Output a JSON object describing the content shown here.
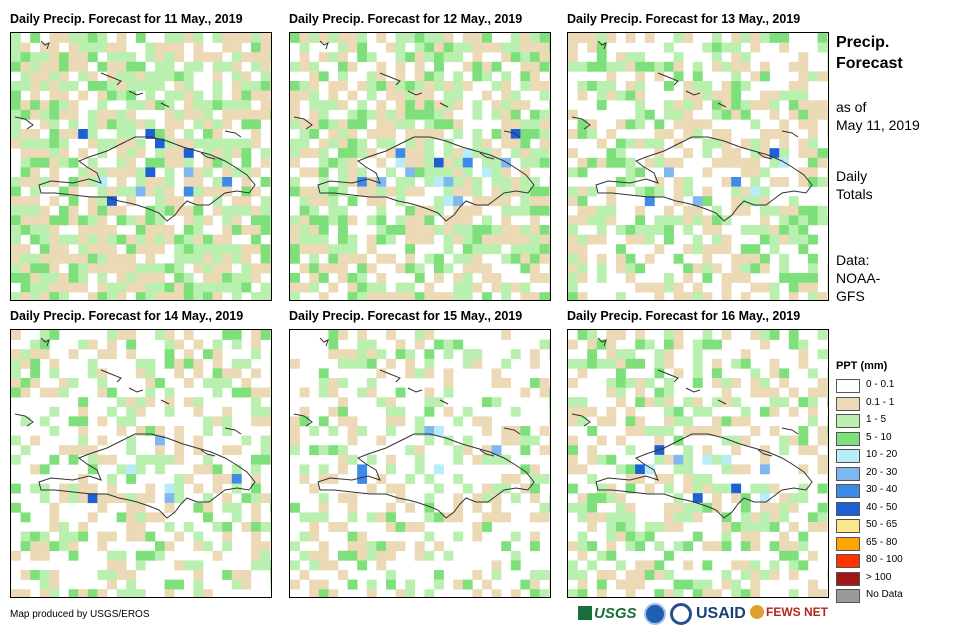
{
  "panels": [
    {
      "title": "Daily Precip. Forecast for 11 May., 2019"
    },
    {
      "title": "Daily Precip. Forecast for 12 May., 2019"
    },
    {
      "title": "Daily Precip. Forecast for 13 May., 2019"
    },
    {
      "title": "Daily Precip. Forecast for 14 May., 2019"
    },
    {
      "title": "Daily Precip. Forecast for 15 May., 2019"
    },
    {
      "title": "Daily Precip. Forecast for 16 May., 2019"
    }
  ],
  "side": {
    "title_line1": "Precip.",
    "title_line2": "Forecast",
    "asof_line1": "as of",
    "asof_line2": "May 11, 2019",
    "totals_line1": "Daily",
    "totals_line2": "Totals",
    "data_line1": "Data:",
    "data_line2": "NOAA-",
    "data_line3": "GFS"
  },
  "legend": {
    "title": "PPT (mm)",
    "items": [
      {
        "label": "0 - 0.1",
        "color": "#ffffff"
      },
      {
        "label": "0.1 - 1",
        "color": "#ecd9b5"
      },
      {
        "label": "1 - 5",
        "color": "#b9f0b0"
      },
      {
        "label": "5 - 10",
        "color": "#7ee07a"
      },
      {
        "label": "10 - 20",
        "color": "#b8ecf6"
      },
      {
        "label": "20 - 30",
        "color": "#7fb8f0"
      },
      {
        "label": "30 - 40",
        "color": "#3f8ae8"
      },
      {
        "label": "40 - 50",
        "color": "#1e5fd6"
      },
      {
        "label": "50 - 65",
        "color": "#fde68a"
      },
      {
        "label": "65 - 80",
        "color": "#ffa500"
      },
      {
        "label": "80 - 100",
        "color": "#ff3300"
      },
      {
        "label": "> 100",
        "color": "#a01818"
      },
      {
        "label": "No Data",
        "color": "#999999"
      }
    ]
  },
  "footer": {
    "credit": "Map produced by USGS/EROS",
    "logo_usgs": "USGS",
    "logo_usaid": "USAID",
    "logo_fews": "FEWS NET"
  }
}
